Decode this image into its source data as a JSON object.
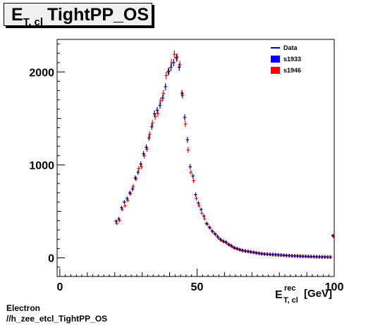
{
  "chart_data": {
    "type": "scatter",
    "title_main": "E",
    "title_sub": "T, cl",
    "title_rest": "TightPP_OS",
    "xlabel_main": "E",
    "xlabel_sup": "rec",
    "xlabel_sub": "T, cl",
    "xlabel_unit": "[GeV]",
    "xlim": [
      -1,
      100
    ],
    "ylim": [
      -200,
      2350
    ],
    "x_ticks": [
      0,
      50,
      100
    ],
    "y_ticks": [
      0,
      1000,
      2000
    ],
    "x_tick_labels": [
      "0",
      "50",
      "100"
    ],
    "y_tick_labels": [
      "0",
      "1000",
      "2000"
    ],
    "legend_placement": "top-right",
    "legend": [
      {
        "label": "Data",
        "style": "line",
        "color": "#00008b"
      },
      {
        "label": "s1933",
        "style": "box",
        "color": "#0000ff"
      },
      {
        "label": "s1946",
        "style": "box",
        "color": "#ff0000"
      }
    ],
    "series": [
      {
        "name": "s1933",
        "color": "#00008b",
        "x": [
          20.5,
          21.5,
          22.5,
          23.5,
          24.5,
          25.5,
          26.5,
          27.5,
          28.5,
          29.5,
          30.5,
          31.5,
          32.5,
          33.5,
          34.5,
          35.5,
          36.5,
          37.5,
          38.5,
          39.5,
          40.5,
          41.5,
          42.5,
          43.5,
          44.5,
          45.5,
          46.5,
          47.5,
          48.5,
          49.5,
          50.5,
          51.5,
          52.5,
          53.5,
          54.5,
          55.5,
          56.5,
          57.5,
          58.5,
          59.5,
          60.5,
          61.5,
          62.5,
          63.5,
          64.5,
          65.5,
          66.5,
          67.5,
          68.5,
          69.5,
          70.5,
          71.5,
          72.5,
          73.5,
          74.5,
          75.5,
          76.5,
          77.5,
          78.5,
          79.5,
          80.5,
          81.5,
          82.5,
          83.5,
          84.5,
          85.5,
          86.5,
          87.5,
          88.5,
          89.5,
          90.5,
          91.5,
          92.5,
          93.5,
          94.5,
          95.5,
          96.5,
          97.5,
          98.5,
          99.5
        ],
        "values": [
          395,
          420,
          540,
          600,
          640,
          700,
          740,
          860,
          920,
          1010,
          1120,
          1190,
          1290,
          1410,
          1550,
          1590,
          1640,
          1720,
          1840,
          2000,
          2050,
          2100,
          2150,
          2050,
          1770,
          1510,
          1270,
          980,
          880,
          680,
          590,
          520,
          450,
          370,
          330,
          290,
          260,
          230,
          200,
          180,
          170,
          145,
          130,
          110,
          100,
          90,
          80,
          75,
          70,
          65,
          60,
          55,
          50,
          45,
          42,
          40,
          38,
          36,
          34,
          32,
          30,
          28,
          26,
          24,
          22,
          21,
          20,
          18,
          17,
          16,
          15,
          14,
          13,
          12,
          11,
          10,
          10,
          9,
          9,
          240
        ]
      },
      {
        "name": "s1946",
        "color": "#ff0000",
        "x": [
          20.5,
          21.5,
          22.5,
          23.5,
          24.5,
          25.5,
          26.5,
          27.5,
          28.5,
          29.5,
          30.5,
          31.5,
          32.5,
          33.5,
          34.5,
          35.5,
          36.5,
          37.5,
          38.5,
          39.5,
          40.5,
          41.5,
          42.5,
          43.5,
          44.5,
          45.5,
          46.5,
          47.5,
          48.5,
          49.5,
          50.5,
          51.5,
          52.5,
          53.5,
          54.5,
          55.5,
          56.5,
          57.5,
          58.5,
          59.5,
          60.5,
          61.5,
          62.5,
          63.5,
          64.5,
          65.5,
          66.5,
          67.5,
          68.5,
          69.5,
          70.5,
          71.5,
          72.5,
          73.5,
          74.5,
          75.5,
          76.5,
          77.5,
          78.5,
          79.5,
          80.5,
          81.5,
          82.5,
          83.5,
          84.5,
          85.5,
          86.5,
          87.5,
          88.5,
          89.5,
          90.5,
          91.5,
          92.5,
          93.5,
          94.5,
          95.5,
          96.5,
          97.5,
          98.5,
          99.5
        ],
        "values": [
          370,
          400,
          520,
          560,
          620,
          690,
          770,
          850,
          960,
          980,
          1100,
          1170,
          1330,
          1450,
          1520,
          1550,
          1690,
          1770,
          1960,
          2010,
          2100,
          2190,
          2160,
          2080,
          1750,
          1440,
          1160,
          920,
          830,
          640,
          560,
          480,
          420,
          360,
          320,
          280,
          250,
          215,
          190,
          175,
          160,
          140,
          120,
          105,
          95,
          85,
          78,
          70,
          68,
          62,
          58,
          52,
          48,
          44,
          40,
          39,
          36,
          35,
          33,
          31,
          29,
          27,
          25,
          23,
          22,
          20,
          19,
          18,
          16,
          15,
          14,
          13,
          12,
          11,
          10,
          10,
          9,
          8,
          8,
          230
        ]
      }
    ]
  },
  "footer": {
    "line1": "Electron",
    "line2": "//h_zee_etcl_TightPP_OS"
  }
}
